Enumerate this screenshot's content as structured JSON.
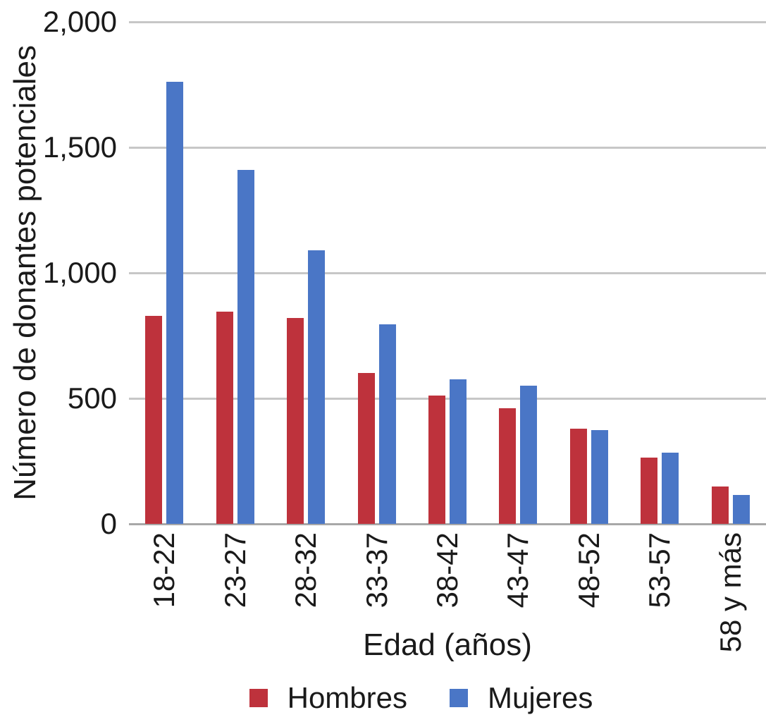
{
  "chart_data": {
    "type": "bar",
    "title": "",
    "xlabel": "Edad (años)",
    "ylabel": "Número de donantes potenciales",
    "categories": [
      "18-22",
      "23-27",
      "28-32",
      "33-37",
      "38-42",
      "43-47",
      "48-52",
      "53-57",
      "58 y más"
    ],
    "series": [
      {
        "name": "Hombres",
        "color": "#be323c",
        "values": [
          830,
          845,
          820,
          600,
          510,
          460,
          380,
          265,
          150
        ]
      },
      {
        "name": "Mujeres",
        "color": "#4a76c6",
        "values": [
          1760,
          1410,
          1090,
          795,
          575,
          550,
          375,
          285,
          115
        ]
      }
    ],
    "ylim": [
      0,
      2000
    ],
    "ytick_values": [
      0,
      500,
      1000,
      1500,
      2000
    ],
    "ytick_labels": [
      "0",
      "500",
      "1,000",
      "1,500",
      "2,000"
    ],
    "grid": "horizontal",
    "legend_position": "bottom",
    "colors": {
      "gridline": "#c7c7c7",
      "zero_line": "#a8a8a8",
      "text": "#1a1a1a",
      "background": "#ffffff"
    }
  }
}
